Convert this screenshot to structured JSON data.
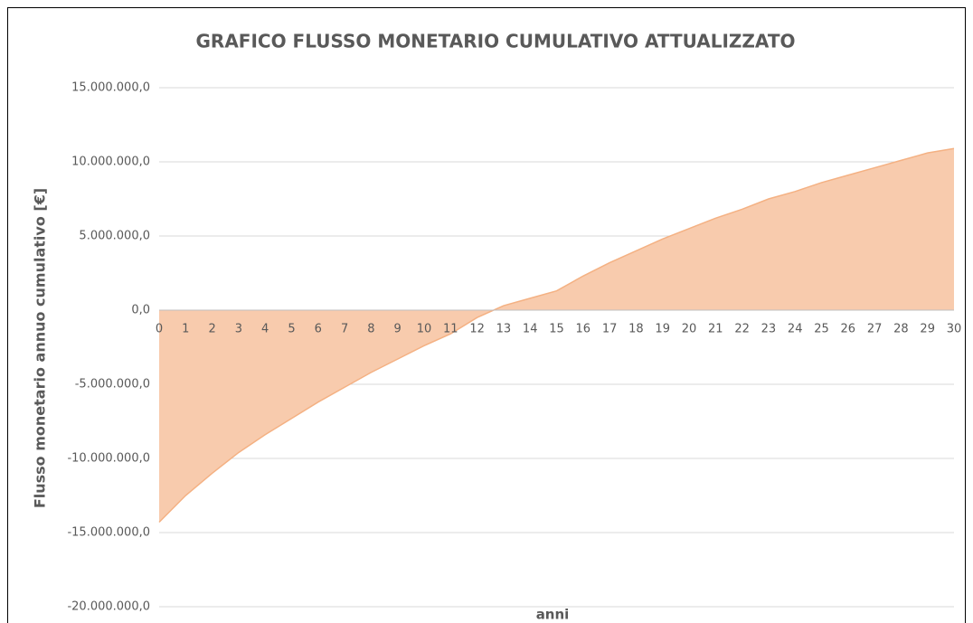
{
  "chart_data": {
    "type": "area",
    "title": "GRAFICO FLUSSO MONETARIO CUMULATIVO ATTUALIZZATO",
    "x_label": "anni",
    "y_label": "Flusso monetario annuo cumulativo [€]",
    "x": [
      0,
      1,
      2,
      3,
      4,
      5,
      6,
      7,
      8,
      9,
      10,
      11,
      12,
      13,
      14,
      15,
      16,
      17,
      18,
      19,
      20,
      21,
      22,
      23,
      24,
      25,
      26,
      27,
      28,
      29,
      30
    ],
    "values": [
      -14300000,
      -12500000,
      -11000000,
      -9600000,
      -8400000,
      -7300000,
      -6200000,
      -5200000,
      -4200000,
      -3300000,
      -2400000,
      -1600000,
      -500000,
      300000,
      800000,
      1300000,
      2300000,
      3200000,
      4000000,
      4800000,
      5500000,
      6200000,
      6800000,
      7500000,
      8000000,
      8600000,
      9100000,
      9600000,
      10100000,
      10600000,
      10900000
    ],
    "color": "#f8cbad",
    "line_color": "#f4b183",
    "xlim": [
      0,
      30
    ],
    "xticks": [
      0,
      1,
      2,
      3,
      4,
      5,
      6,
      7,
      8,
      9,
      10,
      11,
      12,
      13,
      14,
      15,
      16,
      17,
      18,
      19,
      20,
      21,
      22,
      23,
      24,
      25,
      26,
      27,
      28,
      29,
      30
    ],
    "ylim": [
      -20000000,
      15000000
    ],
    "yticks": [
      {
        "value": -20000000,
        "label": "-20.000.000,0"
      },
      {
        "value": -15000000,
        "label": "-15.000.000,0"
      },
      {
        "value": -10000000,
        "label": "-10.000.000,0"
      },
      {
        "value": -5000000,
        "label": "-5.000.000,0"
      },
      {
        "value": 0,
        "label": "0,0"
      },
      {
        "value": 5000000,
        "label": "5.000.000,0"
      },
      {
        "value": 10000000,
        "label": "10.000.000,0"
      },
      {
        "value": 15000000,
        "label": "15.000.000,0"
      }
    ],
    "grid": true
  }
}
